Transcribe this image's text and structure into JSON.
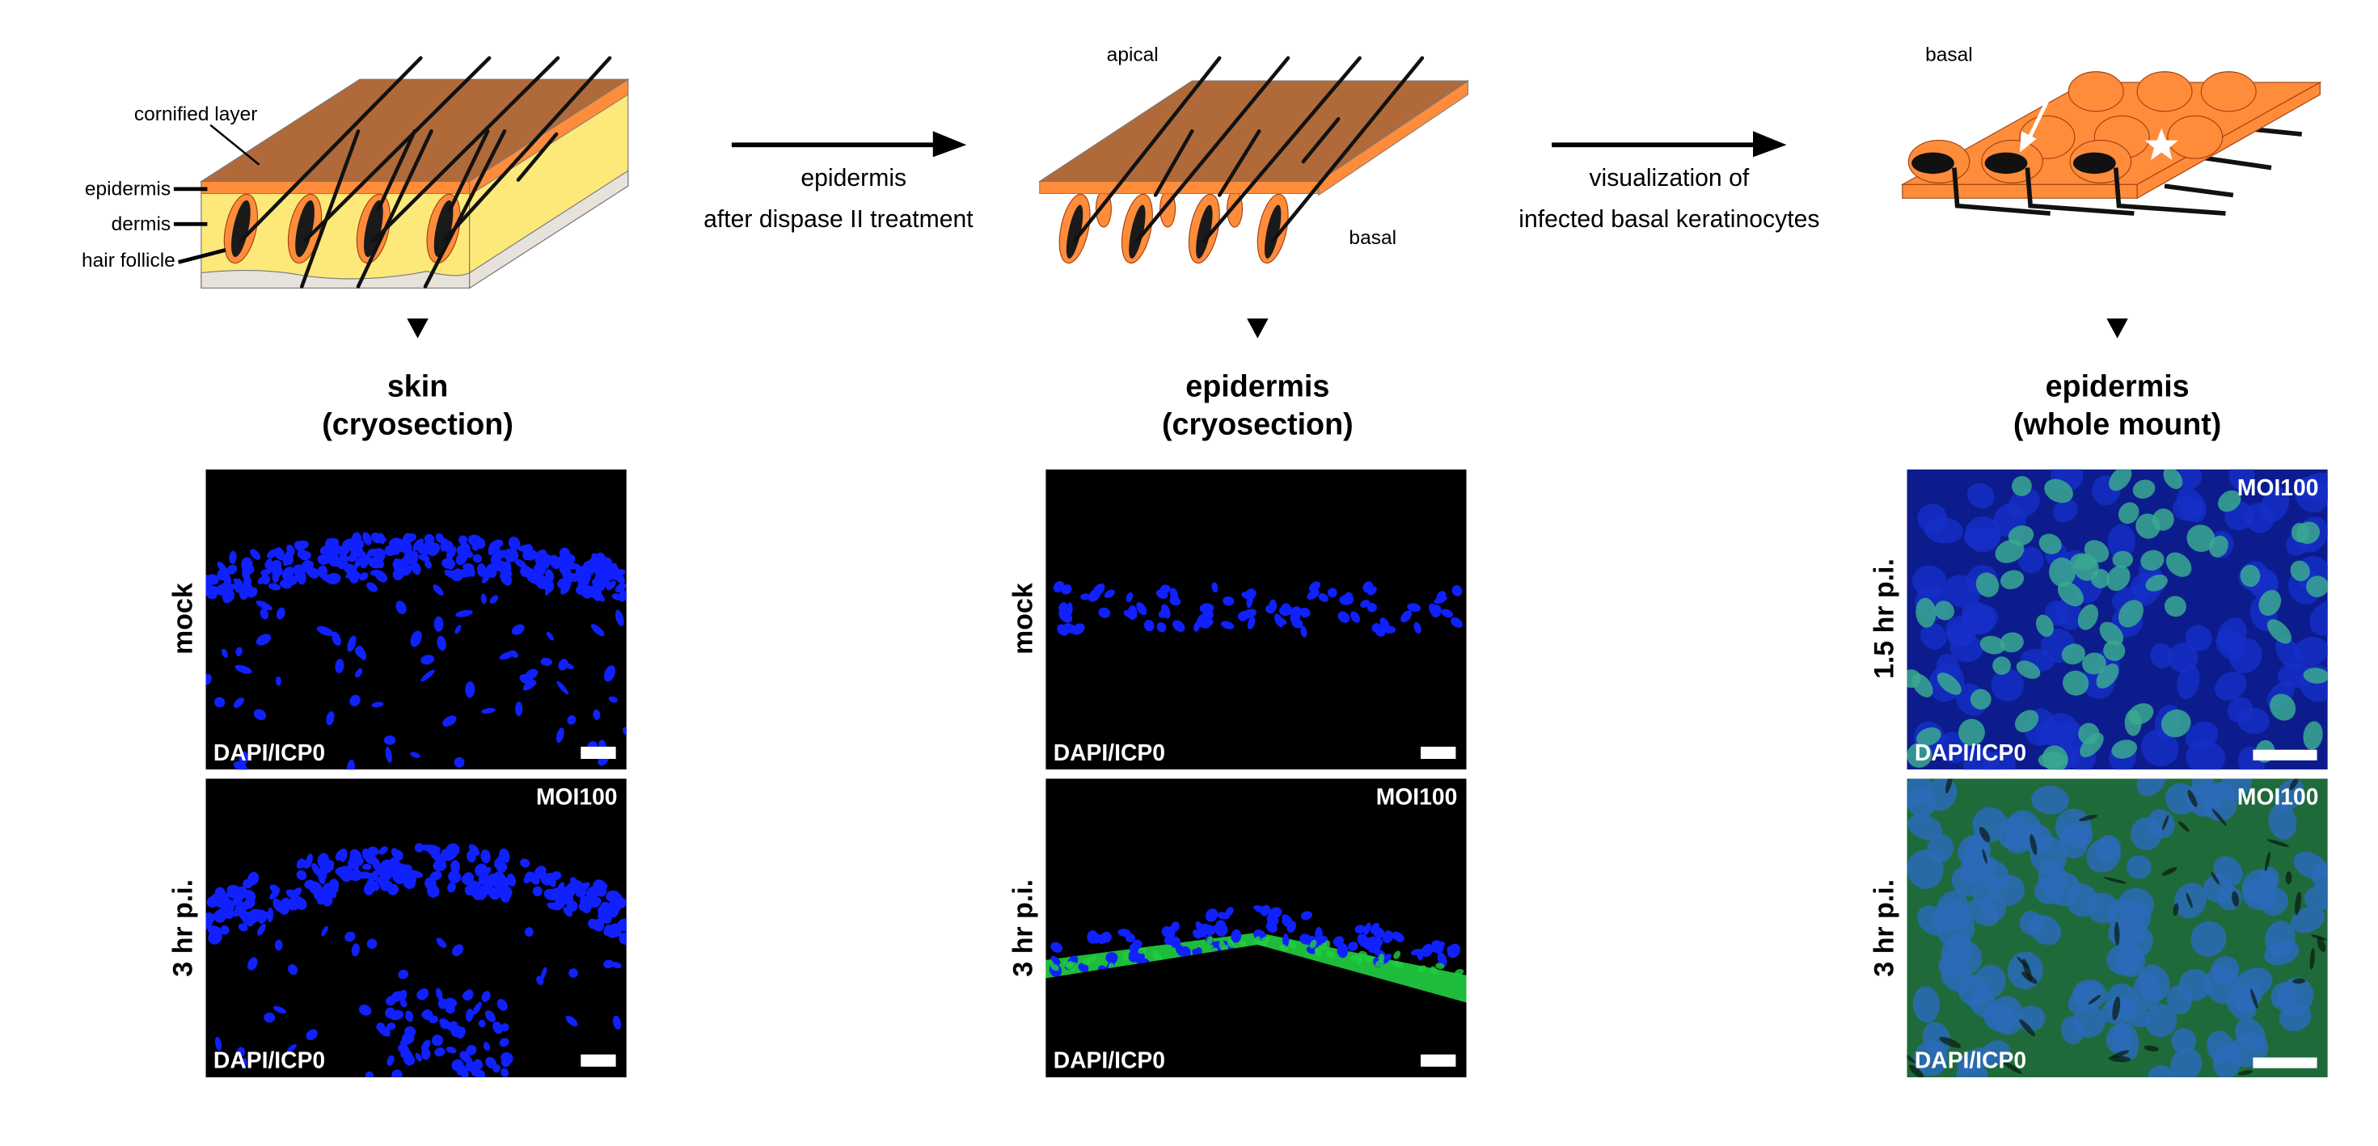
{
  "diagram_skin": {
    "labels": {
      "cornified_layer": "cornified layer",
      "epidermis": "epidermis",
      "dermis": "dermis",
      "hair_follicle": "hair follicle"
    }
  },
  "arrow1": {
    "line1": "epidermis",
    "line2": "after dispase II treatment"
  },
  "diagram_epidermis": {
    "apical": "apical",
    "basal": "basal"
  },
  "arrow2": {
    "line1": "visualization of",
    "line2": "infected basal keratinocytes"
  },
  "diagram_basal": {
    "basal": "basal"
  },
  "columns": [
    {
      "title": "skin",
      "subtitle": "(cryosection)"
    },
    {
      "title": "epidermis",
      "subtitle": "(cryosection)"
    },
    {
      "title": "epidermis",
      "subtitle": "(whole mount)"
    }
  ],
  "row_labels": {
    "mock": "mock",
    "early": "1.5 hr p.i.",
    "late": "3 hr p.i."
  },
  "panel_text": {
    "stain": "DAPI/ICP0",
    "moi": "MOI100"
  },
  "colors": {
    "dapi": "#1020ff",
    "icp0": "#20d040",
    "skin_brown": "#b06a3a",
    "epidermis_orange": "#ff8c3a",
    "dermis_yellow": "#fde97a"
  }
}
